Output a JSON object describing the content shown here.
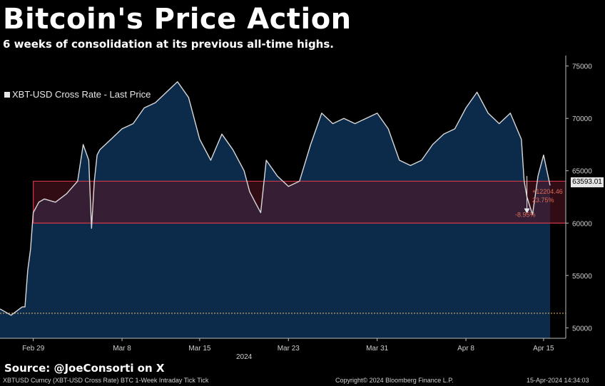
{
  "title": "Bitcoin's Price Action",
  "subtitle": "6 weeks of consolidation at its previous all-time highs.",
  "source": "Source: @JoeConsorti on X",
  "footer": {
    "left": "XBTUSD Curncy (XBT-USD Cross Rate) BTC 1-Week Intraday Tick   Tick",
    "center": "Copyright© 2024 Bloomberg Finance L.P.",
    "right": "15-Apr-2024 14:34:03"
  },
  "legend": {
    "label": "XBT-USD Cross Rate - Last Price"
  },
  "last_price_label": "63593.01",
  "colors": {
    "background": "#000000",
    "area_fill": "#0c2a4a",
    "line": "#d8d8d8",
    "band_fill": "#5a1524",
    "band_border": "#d0384a",
    "annotation": "#e06a55",
    "dotted_line": "#e8c070"
  },
  "chart_data": {
    "type": "area",
    "title": "Bitcoin's Price Action",
    "subtitle": "6 weeks of consolidation at its previous all-time highs.",
    "series": [
      {
        "name": "XBT-USD Cross Rate - Last Price",
        "x": [
          "2024-02-26",
          "2024-02-26T12:00",
          "2024-02-27",
          "2024-02-27T12:00",
          "2024-02-28",
          "2024-02-28T06:00",
          "2024-02-28T12:00",
          "2024-02-28T18:00",
          "2024-02-29",
          "2024-02-29T12:00",
          "2024-03-01",
          "2024-03-02",
          "2024-03-03",
          "2024-03-04",
          "2024-03-04T12:00",
          "2024-03-05",
          "2024-03-05T06:00",
          "2024-03-05T12:00",
          "2024-03-05T18:00",
          "2024-03-06",
          "2024-03-07",
          "2024-03-08",
          "2024-03-09",
          "2024-03-10",
          "2024-03-11",
          "2024-03-12",
          "2024-03-13",
          "2024-03-14",
          "2024-03-14T12:00",
          "2024-03-15",
          "2024-03-16",
          "2024-03-17",
          "2024-03-18",
          "2024-03-19",
          "2024-03-19T12:00",
          "2024-03-20",
          "2024-03-20T12:00",
          "2024-03-21",
          "2024-03-22",
          "2024-03-23",
          "2024-03-24",
          "2024-03-25",
          "2024-03-26",
          "2024-03-27",
          "2024-03-28",
          "2024-03-29",
          "2024-03-30",
          "2024-03-31",
          "2024-04-01",
          "2024-04-02",
          "2024-04-03",
          "2024-04-04",
          "2024-04-05",
          "2024-04-06",
          "2024-04-07",
          "2024-04-08",
          "2024-04-09",
          "2024-04-10",
          "2024-04-11",
          "2024-04-12",
          "2024-04-13",
          "2024-04-13T06:00",
          "2024-04-13T12:00",
          "2024-04-14",
          "2024-04-14T12:00",
          "2024-04-15",
          "2024-04-15T14:00"
        ],
        "values": [
          51800,
          51500,
          51200,
          51600,
          52000,
          52000,
          55500,
          57500,
          61000,
          62000,
          62300,
          62000,
          62800,
          64000,
          67500,
          66000,
          59500,
          64000,
          66500,
          67000,
          68000,
          69000,
          69500,
          71000,
          71500,
          72500,
          73500,
          72000,
          70000,
          68000,
          66000,
          68500,
          67000,
          65000,
          63000,
          62000,
          61000,
          66000,
          64500,
          63500,
          64000,
          67500,
          70500,
          69500,
          70000,
          69500,
          70000,
          70500,
          69000,
          66000,
          65500,
          66000,
          67500,
          68500,
          69000,
          71000,
          72500,
          70500,
          69500,
          70500,
          68000,
          64000,
          62500,
          60800,
          64500,
          66500,
          63593.01
        ]
      }
    ],
    "x_ticks": [
      "Feb 29",
      "Mar 8",
      "Mar 15",
      "Mar 23",
      "Mar 31",
      "Apr 8",
      "Apr 15"
    ],
    "x_year_label": "2024",
    "y_ticks": [
      50000,
      55000,
      60000,
      65000,
      70000,
      75000
    ],
    "ylim": [
      49000,
      76000
    ],
    "xlim": [
      "2024-02-26",
      "2024-04-17"
    ],
    "grid": false,
    "legend_position": "top-left",
    "band": {
      "low": 60000,
      "high": 64000
    },
    "reference_line": 51390,
    "annotations": [
      {
        "text": "+12204.46",
        "y": 63000
      },
      {
        "text": "23.75%",
        "y": 62200
      },
      {
        "text": "-8.95%",
        "y": 60800
      }
    ],
    "last_value": 63593.01
  }
}
